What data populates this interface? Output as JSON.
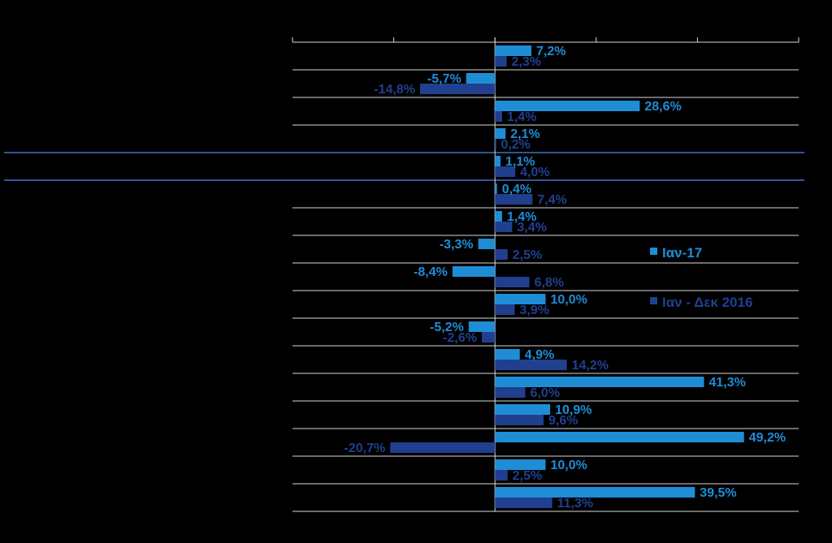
{
  "colors": {
    "background": "#000000",
    "series_1": "#1f8dd6",
    "series_2": "#203f8f",
    "gridline": "#d9d9d9",
    "highlight_line": "#2f5597"
  },
  "chart_data": {
    "type": "bar",
    "orientation": "horizontal",
    "xlim": [
      -40,
      60
    ],
    "grid": true,
    "legend_position": "right",
    "highlighted_row_index": 4,
    "series": [
      {
        "name": "Ιαν-17",
        "values": [
          7.2,
          -5.7,
          28.6,
          2.1,
          1.1,
          0.4,
          1.4,
          -3.3,
          -8.4,
          10.0,
          -5.2,
          4.9,
          41.3,
          10.9,
          49.2,
          10.0,
          39.5
        ],
        "labels": [
          "7,2%",
          "-5,7%",
          "28,6%",
          "2,1%",
          "1,1%",
          "0,4%",
          "1,4%",
          "-3,3%",
          "-8,4%",
          "10,0%",
          "-5,2%",
          "4,9%",
          "41,3%",
          "10,9%",
          "49,2%",
          "10,0%",
          "39,5%"
        ]
      },
      {
        "name": "Ιαν - Δεκ 2016",
        "values": [
          2.3,
          -14.8,
          1.4,
          0.2,
          4.0,
          7.4,
          3.4,
          2.5,
          6.8,
          3.9,
          -2.6,
          14.2,
          6.0,
          9.6,
          -20.7,
          2.5,
          11.3
        ],
        "labels": [
          "2,3%",
          "-14,8%",
          "1,4%",
          "0,2%",
          "4,0%",
          "7,4%",
          "3,4%",
          "2,5%",
          "6,8%",
          "3,9%",
          "-2,6%",
          "14,2%",
          "6,0%",
          "9,6%",
          "-20,7%",
          "2,5%",
          "11,3%"
        ]
      }
    ]
  }
}
